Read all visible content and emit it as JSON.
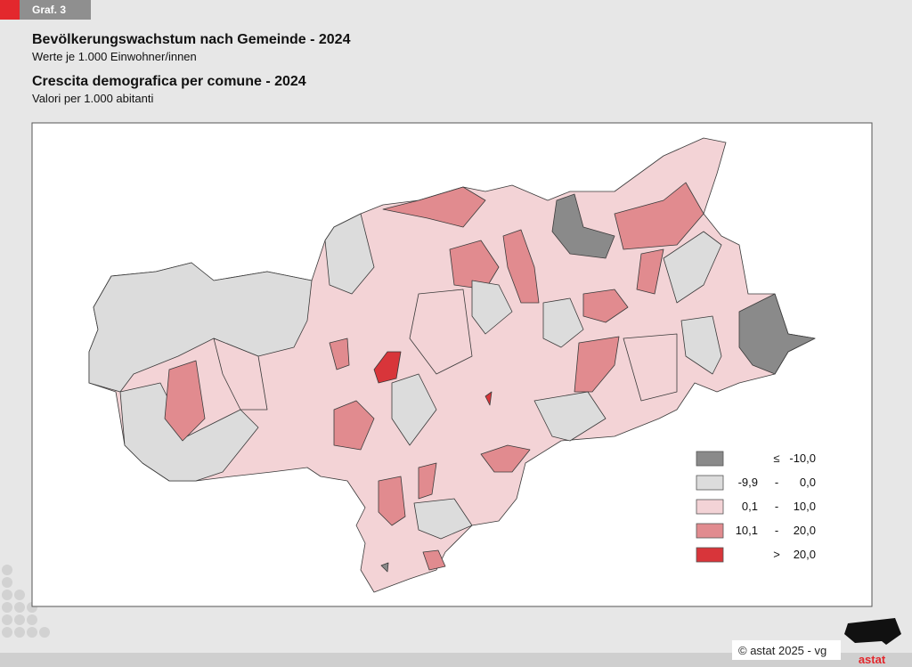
{
  "badge": "Graf. 3",
  "title_de": "Bevölkerungswachstum nach Gemeinde - 2024",
  "subtitle_de": "Werte je 1.000 Einwohner/innen",
  "title_it": "Crescita demografica per comune - 2024",
  "subtitle_it": "Valori per 1.000 abitanti",
  "legend": [
    {
      "parts": [
        "≤",
        "-10,0"
      ],
      "color": "#8a8a8a"
    },
    {
      "parts": [
        "-9,9",
        "-",
        "0,0"
      ],
      "color": "#dcdcdc"
    },
    {
      "parts": [
        "0,1",
        "-",
        "10,0"
      ],
      "color": "#f3d3d6"
    },
    {
      "parts": [
        "10,1",
        "-",
        "20,0"
      ],
      "color": "#e18b8f"
    },
    {
      "parts": [
        ">",
        "20,0"
      ],
      "color": "#d8353a"
    }
  ],
  "footer": "© astat 2025 - vg",
  "logo": "astat"
}
